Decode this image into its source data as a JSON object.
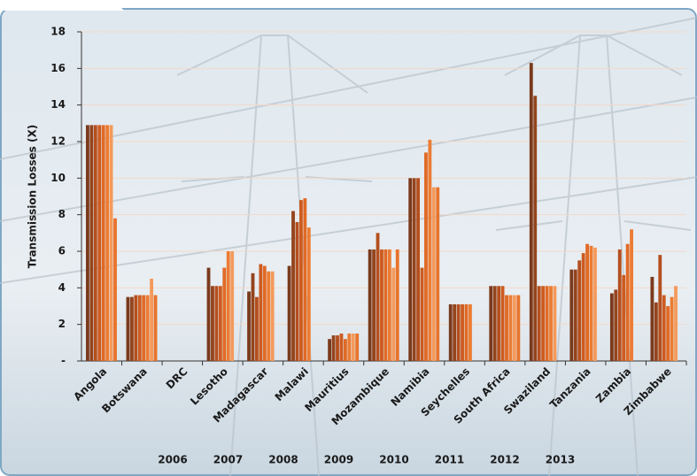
{
  "chart_data": {
    "type": "bar",
    "y_axis_label": "Transmission Losses (X)",
    "categories": [
      "Angola",
      "Botswana",
      "DRC",
      "Lesotho",
      "Madagascar",
      "Malawi",
      "Mauritius",
      "Mozambique",
      "Namibia",
      "Seychelles",
      "South Africa",
      "Swaziland",
      "Tanzania",
      "Zambia",
      "Zimbabwe"
    ],
    "series": [
      {
        "name": "2006",
        "color": "#7a3a1c",
        "values": [
          12.9,
          3.5,
          null,
          5.1,
          3.8,
          5.2,
          1.2,
          6.1,
          10.0,
          3.1,
          4.1,
          16.3,
          5.0,
          3.7,
          4.6
        ]
      },
      {
        "name": "2007",
        "color": "#94441d",
        "values": [
          12.9,
          3.5,
          null,
          4.1,
          4.8,
          8.2,
          1.4,
          6.1,
          10.0,
          3.1,
          4.1,
          14.5,
          5.0,
          3.9,
          3.2
        ]
      },
      {
        "name": "2008",
        "color": "#b44f1e",
        "values": [
          12.9,
          3.6,
          null,
          4.1,
          3.5,
          7.6,
          1.4,
          7.0,
          10.0,
          3.1,
          4.1,
          4.1,
          5.5,
          6.1,
          5.8
        ]
      },
      {
        "name": "2009",
        "color": "#cc5b20",
        "values": [
          12.9,
          3.6,
          null,
          4.1,
          5.3,
          8.8,
          1.5,
          6.1,
          5.1,
          3.1,
          4.1,
          4.1,
          5.9,
          4.7,
          3.6
        ]
      },
      {
        "name": "2010",
        "color": "#e06a26",
        "values": [
          12.9,
          3.6,
          null,
          5.1,
          5.2,
          8.9,
          1.2,
          6.1,
          11.4,
          3.1,
          3.6,
          4.1,
          6.4,
          6.4,
          3.0
        ]
      },
      {
        "name": "2011",
        "color": "#ec7c33",
        "values": [
          12.9,
          3.6,
          null,
          6.0,
          4.9,
          7.3,
          1.5,
          6.1,
          12.1,
          3.1,
          3.6,
          4.1,
          6.3,
          7.2,
          3.5
        ]
      },
      {
        "name": "2012",
        "color": "#f49a5c",
        "values": [
          12.9,
          4.5,
          null,
          6.0,
          4.9,
          null,
          1.5,
          5.1,
          9.5,
          null,
          3.6,
          4.1,
          6.2,
          null,
          4.1
        ]
      },
      {
        "name": "2013",
        "color": "#e8732c",
        "values": [
          7.8,
          3.6,
          null,
          null,
          null,
          null,
          1.5,
          6.1,
          9.5,
          null,
          3.6,
          null,
          null,
          null,
          null
        ]
      }
    ],
    "ylim": [
      0,
      18
    ],
    "yticks": [
      {
        "value": 0,
        "label": "-"
      },
      2,
      4,
      6,
      8,
      10,
      12,
      14,
      16,
      18
    ],
    "grid": true
  }
}
